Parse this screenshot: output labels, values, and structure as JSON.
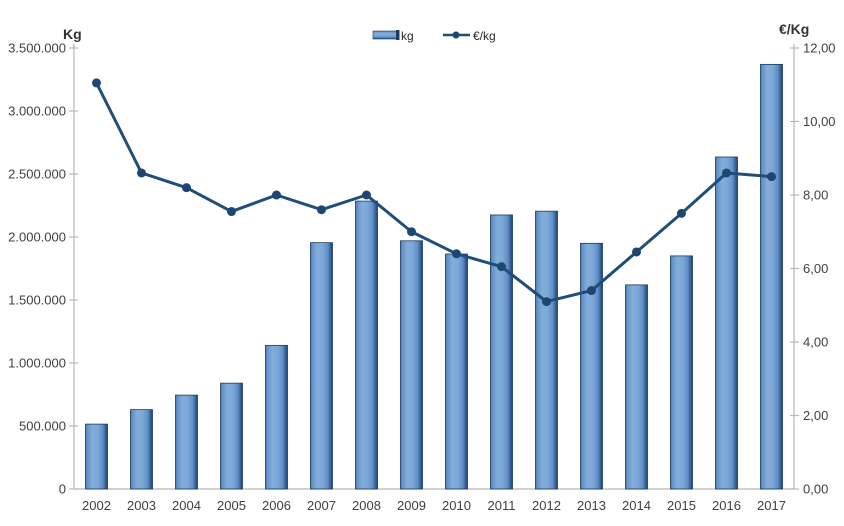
{
  "chart_data": {
    "type": "combo_bar_line",
    "categories": [
      "2002",
      "2003",
      "2004",
      "2005",
      "2006",
      "2007",
      "2008",
      "2009",
      "2010",
      "2011",
      "2012",
      "2013",
      "2014",
      "2015",
      "2016",
      "2017"
    ],
    "series": [
      {
        "name": "kg",
        "type": "bar",
        "axis": "left",
        "values": [
          515000,
          630000,
          745000,
          840000,
          1140000,
          1955000,
          2285000,
          1970000,
          1865000,
          2175000,
          2205000,
          1950000,
          1620000,
          1850000,
          2635000,
          3370000
        ]
      },
      {
        "name": "€/kg",
        "type": "line",
        "axis": "right",
        "values": [
          11.05,
          8.6,
          8.2,
          7.55,
          8.0,
          7.6,
          8.0,
          7.0,
          6.4,
          6.05,
          5.1,
          5.4,
          6.45,
          7.5,
          8.6,
          8.5
        ]
      }
    ],
    "left_axis": {
      "title": "Kg",
      "min": 0,
      "max": 3500000,
      "step": 500000,
      "tick_labels": [
        "0",
        "500.000",
        "1.000.000",
        "1.500.000",
        "2.000.000",
        "2.500.000",
        "3.000.000",
        "3.500.000"
      ]
    },
    "right_axis": {
      "title": "€/Kg",
      "min": 0,
      "max": 12,
      "step": 2,
      "tick_labels": [
        "0,00",
        "2,00",
        "4,00",
        "6,00",
        "8,00",
        "10,00",
        "12,00"
      ]
    },
    "legend": {
      "position": "top-center",
      "entries": [
        "kg",
        "€/kg"
      ]
    },
    "grid": false,
    "colors": {
      "line": "#1f4e79",
      "marker": "#1f4671",
      "bar_edge": "#1c3c63",
      "bar_gradient": [
        "#2a4d7e",
        "#6090c7",
        "#84add9",
        "#7ca7d8",
        "#6090c7",
        "#2f568c",
        "#1c3b63"
      ],
      "axis": "#b7b7b7",
      "text": "#404040"
    }
  }
}
